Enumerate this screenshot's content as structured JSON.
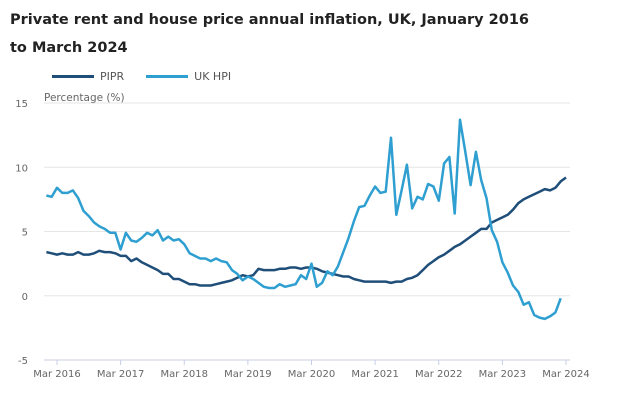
{
  "chart_data": {
    "type": "line",
    "title": "Private rent and house price annual inflation, UK, January 2016 to March 2024",
    "ylabel": "Percentage (%)",
    "xlabel": "",
    "ylim": [
      -5,
      15
    ],
    "yticks": [
      "15",
      "10",
      "5",
      "0",
      "-5"
    ],
    "xticks": [
      "Mar 2016",
      "Mar 2017",
      "Mar 2018",
      "Mar 2019",
      "Mar 2020",
      "Mar 2021",
      "Mar 2022",
      "Mar 2023",
      "Mar 2024"
    ],
    "x_start": "2016-01",
    "x_frequency": "monthly",
    "grid": "horizontal",
    "legend_placement": "top-left",
    "series": [
      {
        "name": "PIPR",
        "color": "#1f4e79",
        "start": "2016-01",
        "values": [
          3.4,
          3.3,
          3.2,
          3.3,
          3.2,
          3.2,
          3.4,
          3.2,
          3.2,
          3.3,
          3.5,
          3.4,
          3.4,
          3.3,
          3.1,
          3.1,
          2.7,
          2.9,
          2.6,
          2.4,
          2.2,
          2.0,
          1.7,
          1.7,
          1.3,
          1.3,
          1.1,
          0.9,
          0.9,
          0.8,
          0.8,
          0.8,
          0.9,
          1.0,
          1.1,
          1.2,
          1.4,
          1.6,
          1.5,
          1.6,
          2.1,
          2.0,
          2.0,
          2.0,
          2.1,
          2.1,
          2.2,
          2.2,
          2.1,
          2.2,
          2.2,
          2.1,
          1.9,
          1.8,
          1.7,
          1.6,
          1.5,
          1.5,
          1.3,
          1.2,
          1.1,
          1.1,
          1.1,
          1.1,
          1.1,
          1.0,
          1.1,
          1.1,
          1.3,
          1.4,
          1.6,
          2.0,
          2.4,
          2.7,
          3.0,
          3.2,
          3.5,
          3.8,
          4.0,
          4.3,
          4.6,
          4.9,
          5.2,
          5.2,
          5.7,
          5.9,
          6.1,
          6.3,
          6.7,
          7.2,
          7.5,
          7.7,
          7.9,
          8.1,
          8.3,
          8.2,
          8.4,
          8.9,
          9.2
        ]
      },
      {
        "name": "UK HPI",
        "color": "#2e9fd0",
        "start": "2016-01",
        "values": [
          7.8,
          7.7,
          8.4,
          8.0,
          8.0,
          8.2,
          7.6,
          6.6,
          6.2,
          5.7,
          5.4,
          5.2,
          4.9,
          4.9,
          3.6,
          4.9,
          4.3,
          4.2,
          4.5,
          4.9,
          4.7,
          5.1,
          4.3,
          4.6,
          4.3,
          4.4,
          4.0,
          3.3,
          3.1,
          2.9,
          2.9,
          2.7,
          2.9,
          2.7,
          2.6,
          2.0,
          1.7,
          1.2,
          1.5,
          1.3,
          1.0,
          0.7,
          0.6,
          0.6,
          0.9,
          0.7,
          0.8,
          0.9,
          1.6,
          1.3,
          2.5,
          0.7,
          1.0,
          1.9,
          1.6,
          2.3,
          3.4,
          4.5,
          5.8,
          6.9,
          7.0,
          7.8,
          8.5,
          8.0,
          8.1,
          12.3,
          6.3,
          8.2,
          10.2,
          6.8,
          7.7,
          7.5,
          8.7,
          8.5,
          7.4,
          10.3,
          10.8,
          6.4,
          13.7,
          11.2,
          8.6,
          11.2,
          9.0,
          7.6,
          5.1,
          4.2,
          2.6,
          1.8,
          0.8,
          0.3,
          -0.7,
          -0.5,
          -1.5,
          -1.7,
          -1.8,
          -1.6,
          -1.3,
          -0.2
        ]
      }
    ]
  }
}
